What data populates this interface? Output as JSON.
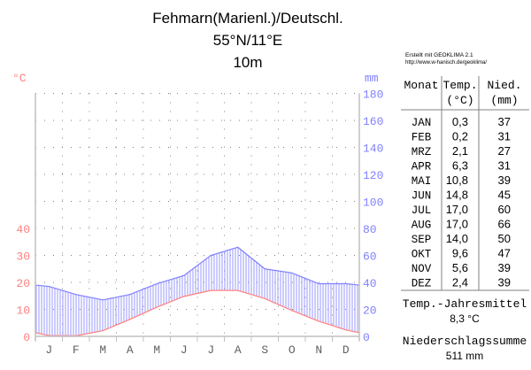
{
  "header": {
    "title_line1": "Fehmarn(Marienl.)/Deutschl.",
    "title_line2": "55°N/11°E",
    "title_line3": "10m",
    "credit_line1": "Erstellt mit GEOKLIMA 2.1",
    "credit_line2": "http://www.w-hanisch.de/geoklima/"
  },
  "table": {
    "col_month": "Monat",
    "col_temp": "Temp.",
    "col_temp_unit": "(°C)",
    "col_prec": "Nied.",
    "col_prec_unit": "(mm)",
    "rows": [
      {
        "month": "JAN",
        "temp": "0,3",
        "prec": "37"
      },
      {
        "month": "FEB",
        "temp": "0,2",
        "prec": "31"
      },
      {
        "month": "MRZ",
        "temp": "2,1",
        "prec": "27"
      },
      {
        "month": "APR",
        "temp": "6,3",
        "prec": "31"
      },
      {
        "month": "MAI",
        "temp": "10,8",
        "prec": "39"
      },
      {
        "month": "JUN",
        "temp": "14,8",
        "prec": "45"
      },
      {
        "month": "JUL",
        "temp": "17,0",
        "prec": "60"
      },
      {
        "month": "AUG",
        "temp": "17,0",
        "prec": "66"
      },
      {
        "month": "SEP",
        "temp": "14,0",
        "prec": "50"
      },
      {
        "month": "OKT",
        "temp": "9,6",
        "prec": "47"
      },
      {
        "month": "NOV",
        "temp": "5,6",
        "prec": "39"
      },
      {
        "month": "DEZ",
        "temp": "2,4",
        "prec": "39"
      }
    ],
    "annual_temp_label": "Temp.-Jahresmittel",
    "annual_temp_value": "8,3 °C",
    "annual_prec_label": "Niederschlagssumme",
    "annual_prec_value": "511 mm"
  },
  "colors": {
    "temp": "#ff8080",
    "prec": "#8080ff",
    "grid": "#808080",
    "axis": "#c0c0c0"
  },
  "chart_data": {
    "type": "line",
    "title": "Fehmarn(Marienl.)/Deutschl.",
    "categories": [
      "J",
      "F",
      "M",
      "A",
      "M",
      "J",
      "J",
      "A",
      "S",
      "O",
      "N",
      "D"
    ],
    "series": [
      {
        "name": "Temperature",
        "unit": "°C",
        "axis": "left",
        "values": [
          0.3,
          0.2,
          2.1,
          6.3,
          10.8,
          14.8,
          17.0,
          17.0,
          14.0,
          9.6,
          5.6,
          2.4
        ]
      },
      {
        "name": "Precipitation",
        "unit": "mm",
        "axis": "right",
        "values": [
          37,
          31,
          27,
          31,
          39,
          45,
          60,
          66,
          50,
          47,
          39,
          39
        ]
      }
    ],
    "ylabel_left": "°C",
    "ylabel_right": "mm",
    "left_ticks": [
      "0",
      "10",
      "20",
      "30",
      "40"
    ],
    "right_ticks": [
      "0",
      "20",
      "40",
      "60",
      "80",
      "100",
      "120",
      "140",
      "160",
      "180"
    ],
    "ylim_left": [
      0,
      90
    ],
    "ylim_right": [
      0,
      180
    ],
    "grid": true
  }
}
